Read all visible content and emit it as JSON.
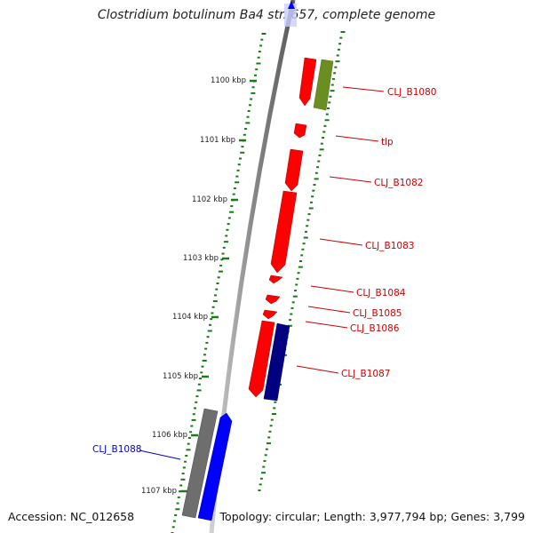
{
  "title": {
    "text": "Clostridium botulinum Ba4 str. 657, complete genome"
  },
  "footer": {
    "accession_label": "Accession:",
    "accession": "NC_012658",
    "topology_label": "Topology:",
    "topology": "circular",
    "length_label": "Length:",
    "length": "3,977,794 bp",
    "genes_label": "Genes:",
    "genes": "3,799"
  },
  "scale": {
    "unit": "kbp",
    "ticks": [
      {
        "label": "1100 kbp"
      },
      {
        "label": "1101 kbp"
      },
      {
        "label": "1102 kbp"
      },
      {
        "label": "1103 kbp"
      },
      {
        "label": "1104 kbp"
      },
      {
        "label": "1105 kbp"
      },
      {
        "label": "1106 kbp"
      },
      {
        "label": "1107 kbp"
      }
    ]
  },
  "genes": [
    {
      "name": "CLJ_B1080",
      "label_color": "#cc0000"
    },
    {
      "name": "tlp",
      "label_color": "#cc0000"
    },
    {
      "name": "CLJ_B1082",
      "label_color": "#cc0000"
    },
    {
      "name": "CLJ_B1083",
      "label_color": "#cc0000"
    },
    {
      "name": "CLJ_B1084",
      "label_color": "#cc0000"
    },
    {
      "name": "CLJ_B1085",
      "label_color": "#cc0000"
    },
    {
      "name": "CLJ_B1086",
      "label_color": "#cc0000"
    },
    {
      "name": "CLJ_B1087",
      "label_color": "#cc0000"
    },
    {
      "name": "CLJ_B1088",
      "label_color": "#0000cc"
    }
  ],
  "colors": {
    "forward_gene": "#ff0000",
    "reverse_gene": "#0000ff",
    "backbone": "#888888",
    "tick_dots": "#1a7a1a",
    "green_feature": "#6b8e23",
    "dark_feature": "#000080",
    "grey_feature": "#666666"
  }
}
